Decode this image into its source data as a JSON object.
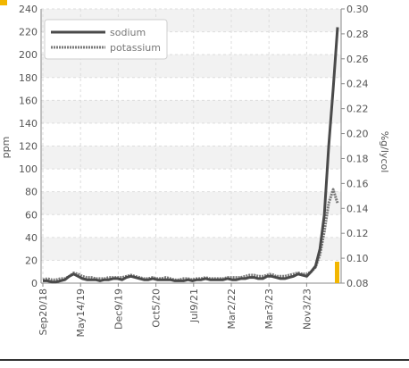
{
  "chart_data": {
    "type": "line",
    "y_left": {
      "label": "ppm",
      "ticks": [
        0,
        20,
        40,
        60,
        80,
        100,
        120,
        140,
        160,
        180,
        200,
        220,
        240
      ],
      "range": [
        0,
        240
      ]
    },
    "y_right": {
      "label": "%g/lycol",
      "ticks": [
        "0.08",
        "0.10",
        "0.12",
        "0.14",
        "0.16",
        "0.18",
        "0.20",
        "0.22",
        "0.24",
        "0.26",
        "0.28",
        "0.30"
      ],
      "range": [
        0.08,
        0.3
      ]
    },
    "x_ticks": [
      "Sep20/18",
      "May14/19",
      "Dec9/19",
      "Oct5/20",
      "Jul9/21",
      "Mar2/22",
      "Mar3/23",
      "Nov3/23"
    ],
    "grid": true,
    "legend_position": "top-left",
    "colors": {
      "sodium": "#4a4a4a",
      "potassium": "#7a7a7a",
      "accent": "#f2b600",
      "grid": "#dddddd",
      "band": "#f2f2f2"
    },
    "series": [
      {
        "name": "sodium",
        "style": "solid",
        "values": [
          2,
          2,
          1,
          1,
          2,
          3,
          6,
          8,
          6,
          4,
          3,
          3,
          3,
          2,
          3,
          3,
          4,
          4,
          3,
          5,
          6,
          5,
          4,
          3,
          3,
          4,
          3,
          3,
          3,
          3,
          2,
          2,
          2,
          3,
          2,
          3,
          3,
          4,
          3,
          3,
          3,
          3,
          4,
          3,
          3,
          4,
          4,
          5,
          5,
          4,
          4,
          6,
          6,
          5,
          4,
          4,
          5,
          6,
          8,
          7,
          6,
          10,
          15,
          30,
          60,
          120,
          170,
          224
        ]
      },
      {
        "name": "potassium",
        "style": "dotted",
        "values": [
          3,
          4,
          3,
          3,
          4,
          4,
          6,
          9,
          8,
          6,
          5,
          5,
          4,
          4,
          4,
          5,
          5,
          5,
          5,
          6,
          7,
          6,
          5,
          4,
          4,
          5,
          4,
          4,
          5,
          4,
          3,
          3,
          4,
          4,
          3,
          4,
          4,
          5,
          4,
          4,
          4,
          4,
          5,
          5,
          5,
          5,
          6,
          7,
          7,
          6,
          6,
          7,
          8,
          6,
          6,
          6,
          7,
          8,
          9,
          8,
          8,
          10,
          14,
          25,
          45,
          70,
          82,
          70
        ]
      }
    ]
  }
}
